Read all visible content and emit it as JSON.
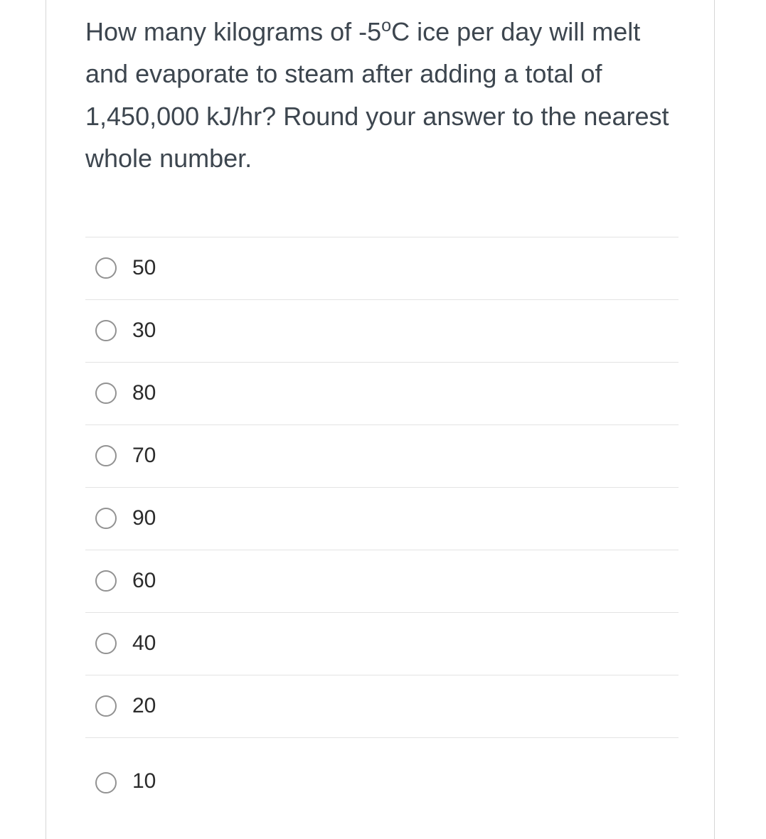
{
  "question": {
    "text_parts": {
      "p1": "How many kilograms of -5",
      "sup": "o",
      "p2": "C ice per day will melt and evaporate to steam after adding a total of 1,450,000 kJ/hr? Round your answer to the nearest whole number."
    }
  },
  "options": [
    {
      "label": "50"
    },
    {
      "label": "30"
    },
    {
      "label": "80"
    },
    {
      "label": "70"
    },
    {
      "label": "90"
    },
    {
      "label": "60"
    },
    {
      "label": "40"
    },
    {
      "label": "20"
    },
    {
      "label": "10"
    }
  ],
  "colors": {
    "text": "#3d464f",
    "option_text": "#2b2b2b",
    "border": "#e3e3e3",
    "radio_border": "#929292",
    "container_border": "#d6d6d6",
    "background": "#ffffff"
  },
  "typography": {
    "question_fontsize": 36,
    "option_fontsize": 30
  }
}
